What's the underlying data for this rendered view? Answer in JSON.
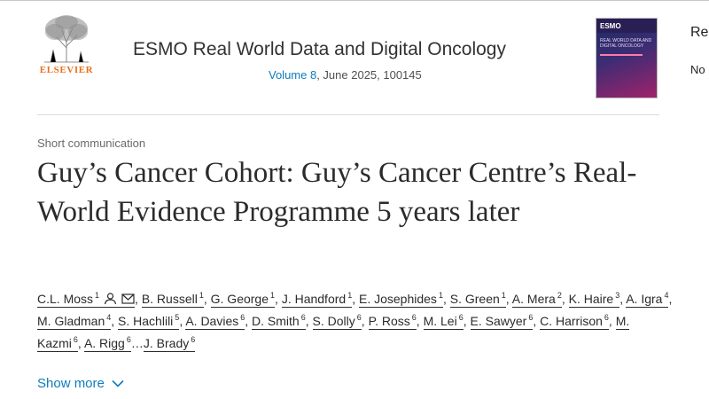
{
  "publisher": {
    "name": "ELSEVIER"
  },
  "journal": {
    "title": "ESMO Real World Data and Digital Oncology",
    "volume_label": "Volume 8",
    "issue_details": ", June 2025, 100145",
    "cover": {
      "brand": "ESMO",
      "name": "REAL WORLD DATA AND DIGITAL ONCOLOGY"
    }
  },
  "right_panel": {
    "line1": "Re",
    "line2": "No"
  },
  "article": {
    "type": "Short communication",
    "title": "Guy’s Cancer Cohort: Guy’s Cancer Centre’s Real-World Evidence Programme 5 years later",
    "show_more": "Show more"
  },
  "authors": [
    {
      "name": "C.L. Moss",
      "aff": "1",
      "icons": [
        "person-icon",
        "email-icon"
      ]
    },
    {
      "name": "B. Russell",
      "aff": "1"
    },
    {
      "name": "G. George",
      "aff": "1"
    },
    {
      "name": "J. Handford",
      "aff": "1"
    },
    {
      "name": "E. Josephides",
      "aff": "1"
    },
    {
      "name": "S. Green",
      "aff": "1"
    },
    {
      "name": "A. Mera",
      "aff": "2"
    },
    {
      "name": "K. Haire",
      "aff": "3"
    },
    {
      "name": "A. Igra",
      "aff": "4"
    },
    {
      "name": "M. Gladman",
      "aff": "4"
    },
    {
      "name": "S. Hachlili",
      "aff": "5"
    },
    {
      "name": "A. Davies",
      "aff": "6"
    },
    {
      "name": "D. Smith",
      "aff": "6"
    },
    {
      "name": "S. Dolly",
      "aff": "6"
    },
    {
      "name": "P. Ross",
      "aff": "6"
    },
    {
      "name": "M. Lei",
      "aff": "6"
    },
    {
      "name": "E. Sawyer",
      "aff": "6"
    },
    {
      "name": "C. Harrison",
      "aff": "6"
    },
    {
      "name": "M. Kazmi",
      "aff": "6"
    },
    {
      "name": "A. Rigg",
      "aff": "6"
    },
    {
      "name": "J. Brady",
      "aff": "6"
    }
  ],
  "ellipsis_before_last": "…",
  "colors": {
    "link": "#0c7dbb",
    "publisher": "#e9711c"
  }
}
